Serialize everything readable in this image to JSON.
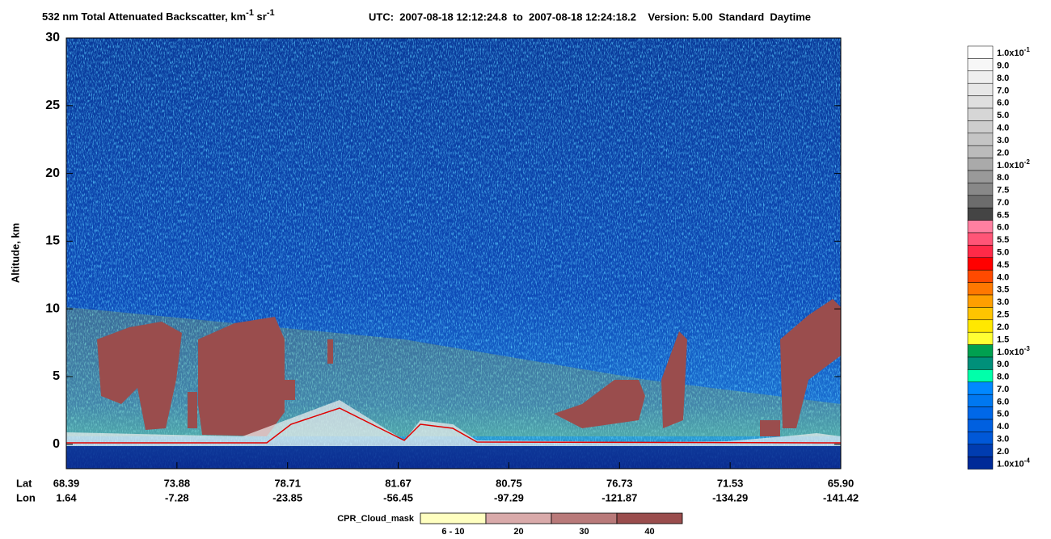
{
  "chart_data": {
    "type": "curtain",
    "title": "532 nm Total Attenuated Backscatter, km",
    "title_exp1": "-1",
    "title_unit2": " sr",
    "title_exp2": "-1",
    "subtitle": "UTC:  2007-08-18 12:12:24.8  to  2007-08-18 12:24:18.2    Version: 5.00  Standard  Daytime",
    "ylabel": "Altitude, km",
    "ylim": [
      -1.8,
      30
    ],
    "yticks": [
      0,
      5,
      10,
      15,
      20,
      25,
      30
    ],
    "x_row_labels": [
      "Lat",
      "Lon"
    ],
    "lat": [
      "68.39",
      "73.88",
      "78.71",
      "81.67",
      "80.75",
      "76.73",
      "71.53",
      "65.90"
    ],
    "lon": [
      "1.64",
      "-7.28",
      "-23.85",
      "-56.45",
      "-97.29",
      "-121.87",
      "-134.29",
      "-141.42"
    ],
    "colorbar": {
      "labels": [
        {
          "label": "1.0x10",
          "exponent": "-1"
        },
        "9.0",
        "8.0",
        "7.0",
        "6.0",
        "5.0",
        "4.0",
        "3.0",
        "2.0",
        {
          "label": "1.0x10",
          "exponent": "-2"
        },
        "8.0",
        "7.5",
        "7.0",
        "6.5",
        "6.0",
        "5.5",
        "5.0",
        "4.5",
        "4.0",
        "3.5",
        "3.0",
        "2.5",
        "2.0",
        "1.5",
        {
          "label": "1.0x10",
          "exponent": "-3"
        },
        "9.0",
        "8.0",
        "7.0",
        "6.0",
        "5.0",
        "4.0",
        "3.0",
        "2.0",
        {
          "label": "1.0x10",
          "exponent": "-4"
        }
      ],
      "colors": [
        "#ffffff",
        "#f7f7f7",
        "#efefef",
        "#e7e7e7",
        "#dfdfdf",
        "#d6d6d6",
        "#cdcdcd",
        "#c4c4c4",
        "#bbbbbb",
        "#aaaaaa",
        "#999999",
        "#888888",
        "#6c6c6c",
        "#444444",
        "#ff7fa0",
        "#ff5577",
        "#ff2a48",
        "#ff0000",
        "#ff4a00",
        "#ff7800",
        "#ff9f00",
        "#ffc400",
        "#ffe800",
        "#ffff33",
        "#00a050",
        "#00907a",
        "#00ffaa",
        "#0088ff",
        "#0078f0",
        "#0068e8",
        "#0060e0",
        "#0058d8",
        "#003cb0",
        "#002a98"
      ]
    },
    "cloud_mask": {
      "label": "CPR_Cloud_mask",
      "categories": [
        "6 - 10",
        "20",
        "30",
        "40"
      ],
      "colors": [
        "#ffffc0",
        "#d9aaaa",
        "#b97a7a",
        "#9a4d4d"
      ]
    }
  }
}
